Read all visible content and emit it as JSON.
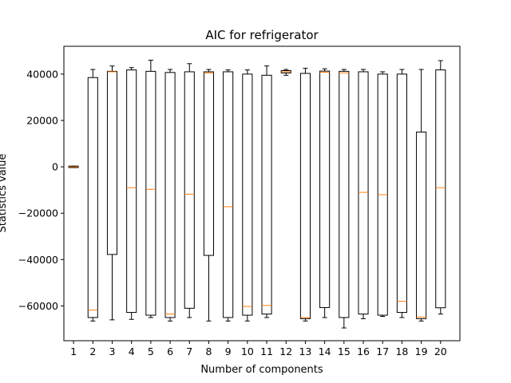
{
  "chart_data": {
    "type": "box",
    "title": "AIC for refrigerator",
    "xlabel": "Number of components",
    "ylabel": "Statistics value",
    "ylim": [
      -75000,
      52000
    ],
    "yticks": [
      -60000,
      -40000,
      -20000,
      0,
      20000,
      40000
    ],
    "ytick_labels": [
      "−60000",
      "−40000",
      "−20000",
      "0",
      "20000",
      "40000"
    ],
    "categories": [
      "1",
      "2",
      "3",
      "4",
      "5",
      "6",
      "7",
      "8",
      "9",
      "10",
      "11",
      "12",
      "13",
      "14",
      "15",
      "16",
      "17",
      "18",
      "19",
      "20"
    ],
    "boxes": [
      {
        "whislo": -300,
        "q1": -300,
        "med": 0,
        "q3": 300,
        "whishi": 300
      },
      {
        "whislo": -66500,
        "q1": -65000,
        "med": -61800,
        "q3": 38500,
        "whishi": 42000
      },
      {
        "whislo": -66000,
        "q1": -37800,
        "med": 41000,
        "q3": 41200,
        "whishi": 43500
      },
      {
        "whislo": -65800,
        "q1": -62800,
        "med": -9000,
        "q3": 41800,
        "whishi": 42800
      },
      {
        "whislo": -65000,
        "q1": -64000,
        "med": -9700,
        "q3": 41200,
        "whishi": 46000
      },
      {
        "whislo": -66500,
        "q1": -65000,
        "med": -63500,
        "q3": 40700,
        "whishi": 42000
      },
      {
        "whislo": -65000,
        "q1": -61000,
        "med": -11800,
        "q3": 41000,
        "whishi": 44500
      },
      {
        "whislo": -66500,
        "q1": -38200,
        "med": 40500,
        "q3": 41000,
        "whishi": 42000
      },
      {
        "whislo": -66500,
        "q1": -65000,
        "med": -17200,
        "q3": 41000,
        "whishi": 41800
      },
      {
        "whislo": -66500,
        "q1": -64000,
        "med": -60200,
        "q3": 40000,
        "whishi": 41800
      },
      {
        "whislo": -65000,
        "q1": -63500,
        "med": -59800,
        "q3": 39500,
        "whishi": 43500
      },
      {
        "whislo": 39500,
        "q1": 40500,
        "med": 41000,
        "q3": 41500,
        "whishi": 42000
      },
      {
        "whislo": -66500,
        "q1": -65500,
        "med": -65000,
        "q3": 40300,
        "whishi": 42500
      },
      {
        "whislo": -65000,
        "q1": -60700,
        "med": 40800,
        "q3": 41300,
        "whishi": 42300
      },
      {
        "whislo": -69500,
        "q1": -65000,
        "med": 40500,
        "q3": 41200,
        "whishi": 42000
      },
      {
        "whislo": -65500,
        "q1": -63500,
        "med": -11000,
        "q3": 41000,
        "whishi": 42000
      },
      {
        "whislo": -64500,
        "q1": -64000,
        "med": -12000,
        "q3": 40000,
        "whishi": 41000
      },
      {
        "whislo": -65000,
        "q1": -62800,
        "med": -58000,
        "q3": 40000,
        "whishi": 42000
      },
      {
        "whislo": -66500,
        "q1": -65500,
        "med": -64800,
        "q3": 15000,
        "whishi": 42000
      },
      {
        "whislo": -63500,
        "q1": -60800,
        "med": -9000,
        "q3": 41800,
        "whishi": 45800
      }
    ],
    "colors": {
      "box": "#000000",
      "median": "#ff7f0e",
      "background": "#ffffff"
    },
    "grid": false,
    "legend": "none"
  }
}
